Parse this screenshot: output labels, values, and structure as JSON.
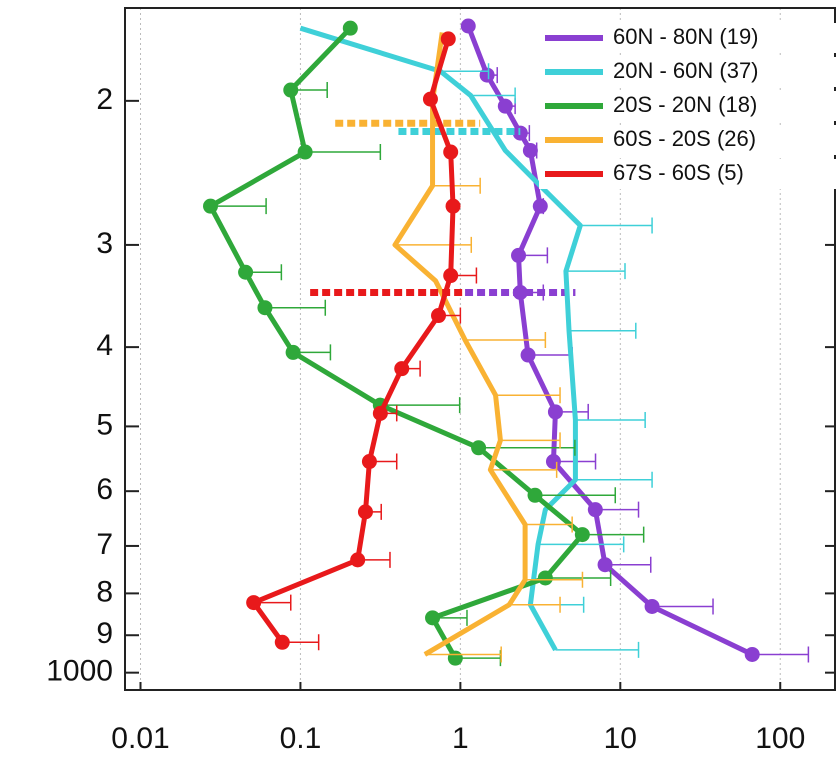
{
  "chart_data": {
    "type": "profile",
    "xscale": "log",
    "yscale": "log",
    "yinvert": true,
    "grid": true,
    "legend": "top-right",
    "xlim": [
      0.008,
      220
    ],
    "xticks": [
      0.01,
      0.1,
      1,
      10,
      100
    ],
    "ylim": [
      154,
      1050
    ],
    "yticks": [
      {
        "value": 200,
        "label": "2"
      },
      {
        "value": 300,
        "label": "3"
      },
      {
        "value": 400,
        "label": "4"
      },
      {
        "value": 500,
        "label": "5"
      },
      {
        "value": 600,
        "label": "6"
      },
      {
        "value": 700,
        "label": "7"
      },
      {
        "value": 800,
        "label": "8"
      },
      {
        "value": 900,
        "label": "9"
      },
      1000
    ],
    "series": [
      {
        "name": "60N - 80N (19)",
        "color": "#8a3fd1",
        "markers": true,
        "x": [
          1.12,
          1.47,
          1.91,
          2.37,
          2.74,
          3.16,
          2.31,
          2.37,
          2.65,
          3.93,
          3.82,
          6.98,
          8.03,
          15.8,
          66.8
        ],
        "y": [
          162,
          186,
          203,
          219,
          230,
          269,
          309,
          343,
          409,
          480,
          552,
          632,
          738,
          830,
          950
        ],
        "upper": [
          null,
          1.7,
          2.2,
          2.7,
          3.0,
          3.3,
          3.5,
          3.3,
          5.0,
          6.3,
          7.0,
          13,
          15.5,
          38,
          150
        ],
        "tropopause": {
          "y": 343,
          "xmin": 1.07,
          "xmax": 5.24
        }
      },
      {
        "name": "20N - 60N (37)",
        "color": "#3fd0d8",
        "markers": false,
        "x": [
          0.1,
          0.75,
          1.16,
          1.91,
          3.16,
          5.62,
          4.57,
          4.78,
          5.24,
          5.24,
          3.4,
          3.06,
          2.74,
          3.93
        ],
        "y": [
          163,
          184,
          197,
          230,
          254,
          284,
          323,
          382,
          491,
          581,
          632,
          697,
          826,
          938
        ],
        "upper": [
          null,
          1.5,
          2.2,
          null,
          null,
          15.8,
          10.7,
          12.5,
          14.3,
          15.8,
          null,
          10.5,
          5.9,
          13
        ],
        "tropopause": {
          "y": 218,
          "xmin": 0.41,
          "xmax": 2.37
        }
      },
      {
        "name": "20S - 20N (18)",
        "color": "#2fa83a",
        "markers": true,
        "x": [
          0.205,
          0.087,
          0.107,
          0.0274,
          0.0454,
          0.06,
          0.09,
          0.316,
          1.3,
          2.93,
          5.79,
          3.4,
          0.67,
          0.93
        ],
        "y": [
          163,
          194,
          231,
          269,
          324,
          358,
          406,
          471,
          531,
          607,
          678,
          766,
          857,
          960
        ],
        "upper": [
          null,
          0.147,
          0.316,
          0.061,
          0.076,
          0.143,
          0.154,
          0.99,
          5.2,
          9.3,
          14,
          8.7,
          1.1,
          1.78
        ]
      },
      {
        "name": "60S - 20S (26)",
        "color": "#f9b233",
        "markers": false,
        "x": [
          0.77,
          0.67,
          0.67,
          0.39,
          0.7,
          1.07,
          1.66,
          1.78,
          1.54,
          2.54,
          2.54,
          2.02,
          0.6
        ],
        "y": [
          165,
          200,
          254,
          300,
          332,
          392,
          458,
          520,
          565,
          659,
          770,
          826,
          950
        ],
        "upper": [
          null,
          null,
          1.33,
          1.17,
          null,
          3.4,
          4.2,
          4.2,
          4.0,
          5.0,
          5.8,
          4.2,
          1.8
        ],
        "tropopause": {
          "y": 213,
          "xmin": 0.165,
          "xmax": 1.33
        }
      },
      {
        "name": "67S - 60S (5)",
        "color": "#e8191b",
        "markers": true,
        "x": [
          0.84,
          0.65,
          0.87,
          0.9,
          0.87,
          0.73,
          0.43,
          0.316,
          0.27,
          0.255,
          0.228,
          0.051,
          0.077
        ],
        "y": [
          168,
          199,
          231,
          269,
          327,
          366,
          425,
          482,
          552,
          636,
          728,
          821,
          918
        ],
        "upper": [
          null,
          null,
          null,
          null,
          1.26,
          1.0,
          0.56,
          0.4,
          0.4,
          0.32,
          0.363,
          0.087,
          0.13
        ],
        "tropopause": {
          "y": 343,
          "xmin": 0.115,
          "xmax": 1.07
        }
      }
    ]
  }
}
